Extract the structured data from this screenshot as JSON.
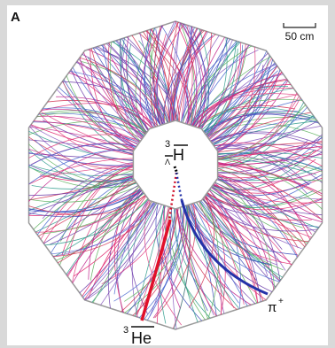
{
  "panel_label": "A",
  "scale_bar": "50 cm",
  "labels": {
    "antihypertriton": {
      "mass_number": "3",
      "symbol": "H",
      "subscript": "Λ"
    },
    "antihelium": {
      "mass_number": "3",
      "symbol": "He"
    },
    "pion": {
      "symbol": "π",
      "charge": "+"
    }
  }
}
